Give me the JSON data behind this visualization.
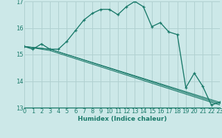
{
  "xlabel": "Humidex (Indice chaleur)",
  "bg_color": "#cce8e8",
  "grid_color": "#b0d0d0",
  "line_color": "#1a7a6a",
  "xlim": [
    0,
    23
  ],
  "ylim": [
    13,
    17
  ],
  "yticks": [
    13,
    14,
    15,
    16,
    17
  ],
  "xticks": [
    0,
    1,
    2,
    3,
    4,
    5,
    6,
    7,
    8,
    9,
    10,
    11,
    12,
    13,
    14,
    15,
    16,
    17,
    18,
    19,
    20,
    21,
    22,
    23
  ],
  "series1_x": [
    0,
    1,
    2,
    3,
    4,
    5,
    6,
    7,
    8,
    9,
    10,
    11,
    12,
    13,
    14,
    15,
    16,
    17,
    18,
    19,
    20,
    21,
    22,
    23
  ],
  "series1_y": [
    15.3,
    15.2,
    15.4,
    15.2,
    15.2,
    15.5,
    15.9,
    16.3,
    16.55,
    16.7,
    16.7,
    16.5,
    16.8,
    17.0,
    16.8,
    16.05,
    16.2,
    15.85,
    15.75,
    13.75,
    14.3,
    13.8,
    13.1,
    13.2
  ],
  "series2_x": [
    0,
    3,
    23
  ],
  "series2_y": [
    15.3,
    15.2,
    13.2
  ],
  "series3_x": [
    0,
    3,
    23
  ],
  "series3_y": [
    15.3,
    15.2,
    13.15
  ],
  "series4_x": [
    0,
    3,
    23
  ],
  "series4_y": [
    15.3,
    15.15,
    13.1
  ]
}
